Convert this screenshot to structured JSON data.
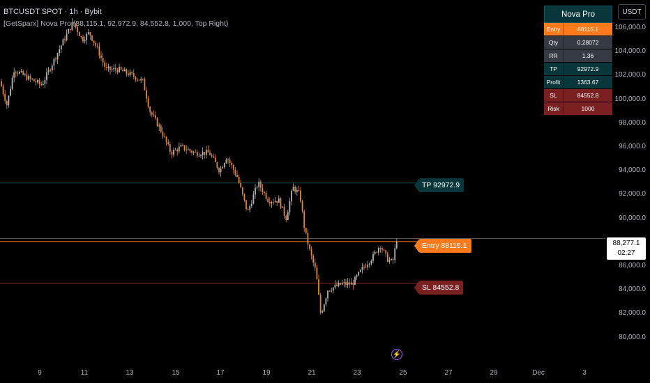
{
  "header": {
    "title": "BTCUSDT SPOT · 1h · Bybit",
    "indicator": "[GetSparx] Nova Pro (88,115.1, 92,972.9, 84,552.8, 1,000, Top Right)"
  },
  "currency_button": "USDT",
  "y_axis": {
    "ticks": [
      "106,000.0",
      "104,000.0",
      "102,000.0",
      "100,000.0",
      "98,000.0",
      "96,000.0",
      "94,000.0",
      "92,000.0",
      "90,000.0",
      "88,000.0",
      "86,000.0",
      "84,000.0",
      "82,000.0",
      "80,000.0"
    ]
  },
  "x_axis": {
    "ticks": [
      "9",
      "11",
      "13",
      "15",
      "17",
      "19",
      "21",
      "23",
      "25",
      "27",
      "29",
      "Dec",
      "3"
    ]
  },
  "current_price": {
    "price": "88,277.1",
    "countdown": "02:27"
  },
  "levels": {
    "tp": "TP 92972.9",
    "entry": "Entry 88115.1",
    "sl": "SL 84552.8"
  },
  "nova_table": {
    "title": "Nova Pro",
    "rows": [
      {
        "label": "Entry",
        "value": "88115.1",
        "bg": "#ff7a1a"
      },
      {
        "label": "Qty",
        "value": "0.28072",
        "bg": "#363a45"
      },
      {
        "label": "RR",
        "value": "1.36",
        "bg": "#363a45"
      },
      {
        "label": "TP",
        "value": "92972.9",
        "bg": "#08363b"
      },
      {
        "label": "Profit",
        "value": "1363.67",
        "bg": "#08363b"
      },
      {
        "label": "SL",
        "value": "84552.8",
        "bg": "#7a2020"
      },
      {
        "label": "Risk",
        "value": "1000",
        "bg": "#7a2020"
      }
    ]
  },
  "colors": {
    "candle_up": "#b5b5b5",
    "candle_down": "#e0873b",
    "tp_line": "#0c4a4f",
    "entry_line": "#ff7a1a",
    "sl_line": "#9a2b2b"
  },
  "bolt_icon": "lightning-icon"
}
